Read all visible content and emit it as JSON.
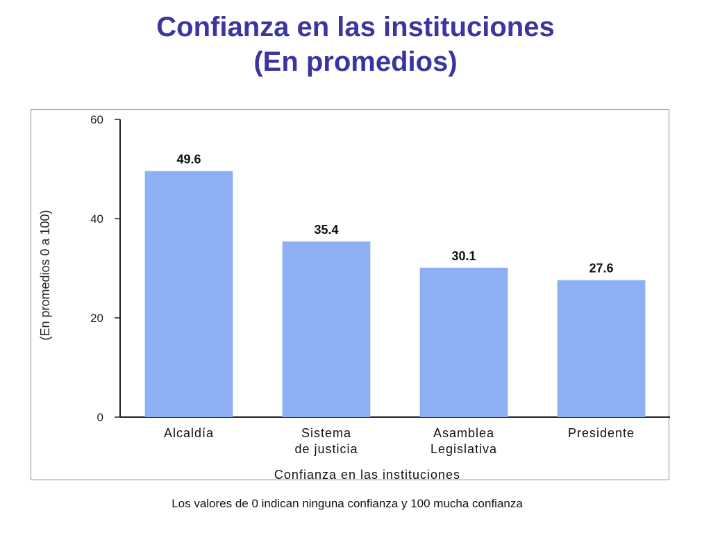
{
  "title_line1": "Confianza en las instituciones",
  "title_line2": "(En promedios)",
  "footnote": "Los valores de 0 indican ninguna confianza y 100 mucha confianza",
  "colors": {
    "title": "#3a35a0",
    "bar": "#8db0f5",
    "axis": "#222222"
  },
  "chart_data": {
    "type": "bar",
    "categories": [
      [
        "Alcaldía"
      ],
      [
        "Sistema",
        "de justicia"
      ],
      [
        "Asamblea",
        "Legislativa"
      ],
      [
        "Presidente"
      ]
    ],
    "values": [
      49.6,
      35.4,
      30.1,
      27.6
    ],
    "value_labels": [
      "49.6",
      "35.4",
      "30.1",
      "27.6"
    ],
    "xlabel": "Confianza en las instituciones",
    "ylabel": "(En promedios 0 a 100)",
    "ylim": [
      0,
      60
    ],
    "yticks": [
      0,
      20,
      40,
      60
    ],
    "grid": false
  }
}
